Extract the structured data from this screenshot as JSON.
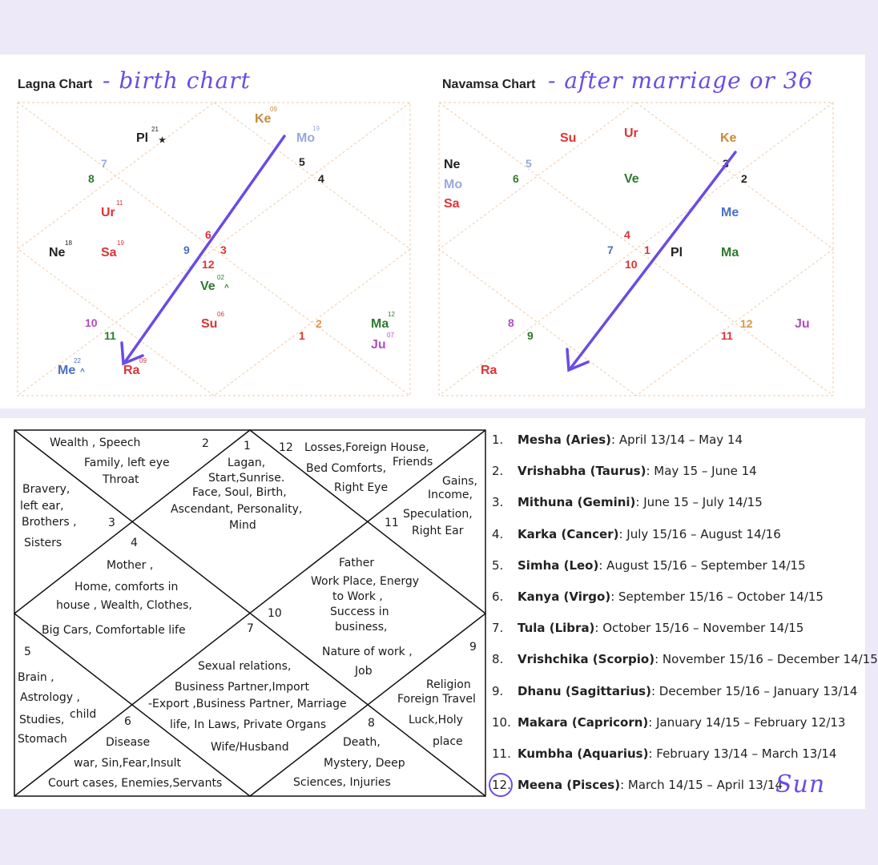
{
  "lagna": {
    "title": "Lagna Chart",
    "note": "- birth chart",
    "houses": [
      {
        "n": "6",
        "c": "#d33"
      },
      {
        "n": "3",
        "c": "#d33"
      },
      {
        "n": "9",
        "c": "#4a6fc4"
      },
      {
        "n": "12",
        "c": "#d33"
      },
      {
        "n": "5",
        "c": "#222"
      },
      {
        "n": "4",
        "c": "#222"
      },
      {
        "n": "7",
        "c": "#9aa8e0"
      },
      {
        "n": "8",
        "c": "#2e7a2e"
      },
      {
        "n": "10",
        "c": "#b04cc4"
      },
      {
        "n": "11",
        "c": "#2e7a2e"
      },
      {
        "n": "1",
        "c": "#d33"
      },
      {
        "n": "2",
        "c": "#e0944a"
      }
    ],
    "planets": [
      {
        "label": "Ke",
        "deg": "09",
        "color": "#c98a3b"
      },
      {
        "label": "Pl",
        "deg": "21",
        "color": "#222",
        "mark": "★"
      },
      {
        "label": "Mo",
        "deg": "19",
        "color": "#9aa8e0"
      },
      {
        "label": "Ur",
        "deg": "11",
        "color": "#d33"
      },
      {
        "label": "Ne",
        "deg": "18",
        "color": "#222"
      },
      {
        "label": "Sa",
        "deg": "19",
        "color": "#d33"
      },
      {
        "label": "Ve",
        "deg": "02",
        "color": "#2e7a2e",
        "mark": "^"
      },
      {
        "label": "Su",
        "deg": "06",
        "color": "#d33"
      },
      {
        "label": "Ma",
        "deg": "12",
        "color": "#2e7a2e"
      },
      {
        "label": "Ju",
        "deg": "07",
        "color": "#b04cc4"
      },
      {
        "label": "Me",
        "deg": "22",
        "color": "#4a6fc4",
        "mark": "^"
      },
      {
        "label": "Ra",
        "deg": "09",
        "color": "#d33"
      }
    ]
  },
  "navamsa": {
    "title": "Navamsa Chart",
    "note": "- after marriage or 36",
    "houses": [
      {
        "n": "4",
        "c": "#d33"
      },
      {
        "n": "7",
        "c": "#4a6fc4"
      },
      {
        "n": "1",
        "c": "#d33"
      },
      {
        "n": "10",
        "c": "#d33"
      },
      {
        "n": "5",
        "c": "#9aa8e0"
      },
      {
        "n": "6",
        "c": "#2e7a2e"
      },
      {
        "n": "3",
        "c": "#222"
      },
      {
        "n": "2",
        "c": "#222"
      },
      {
        "n": "8",
        "c": "#b04cc4"
      },
      {
        "n": "9",
        "c": "#2e7a2e"
      },
      {
        "n": "11",
        "c": "#d33"
      },
      {
        "n": "12",
        "c": "#e0944a"
      }
    ],
    "planets": [
      {
        "label": "Su",
        "color": "#d33"
      },
      {
        "label": "Ur",
        "color": "#d33"
      },
      {
        "label": "Ke",
        "color": "#c98a3b"
      },
      {
        "label": "Ne",
        "color": "#222"
      },
      {
        "label": "Mo",
        "color": "#9aa8e0"
      },
      {
        "label": "Sa",
        "color": "#d33"
      },
      {
        "label": "Ve",
        "color": "#2e7a2e"
      },
      {
        "label": "Me",
        "color": "#4a6fc4"
      },
      {
        "label": "Pl",
        "color": "#222"
      },
      {
        "label": "Ma",
        "color": "#2e7a2e"
      },
      {
        "label": "Ju",
        "color": "#b04cc4"
      },
      {
        "label": "Ra",
        "color": "#d33"
      }
    ]
  },
  "house_map": {
    "numbers": [
      "2",
      "1",
      "12",
      "3",
      "4",
      "11",
      "10",
      "5",
      "7",
      "9",
      "6",
      "8"
    ],
    "texts": [
      "Wealth , Speech",
      "Family, left eye",
      "Throat",
      "Lagan,",
      "Start,Sunrise.",
      "Face, Soul, Birth,",
      "Ascendant, Personality,",
      "Mind",
      "Losses,Foreign House,",
      "Friends",
      "Bed Comforts,",
      "Right Eye",
      "Gains,",
      "Income,",
      "Speculation,",
      "Right Ear",
      "Bravery,",
      "left ear,",
      "Brothers ,",
      "Sisters",
      "Mother ,",
      "Home, comforts in",
      "house , Wealth, Clothes,",
      "Big Cars, Comfortable life",
      "Father",
      "Work Place, Energy",
      "to Work ,",
      "Success in",
      "business,",
      "Nature of work ,",
      "Job",
      "Brain ,",
      "Astrology ,",
      "Studies,",
      "child",
      "Stomach",
      "Sexual relations,",
      "Business Partner,Import",
      "-Export ,Business Partner, Marriage",
      "life, In Laws, Private Organs",
      "Wife/Husband",
      "Religion",
      "Foreign Travel",
      "Luck,Holy",
      "place",
      "Disease",
      "war, Sin,Fear,Insult",
      "Court cases, Enemies,Servants",
      "Death,",
      "Mystery, Deep",
      "Sciences, Injuries"
    ]
  },
  "rashis": [
    {
      "num": "1.",
      "name": "Mesha (Aries)",
      "dates": ": April 13/14 – May 14"
    },
    {
      "num": "2.",
      "name": "Vrishabha (Taurus)",
      "dates": ": May 15 – June 14"
    },
    {
      "num": "3.",
      "name": "Mithuna (Gemini)",
      "dates": ": June 15 – July 14/15"
    },
    {
      "num": "4.",
      "name": "Karka (Cancer)",
      "dates": ": July 15/16 – August 14/16"
    },
    {
      "num": "5.",
      "name": "Simha (Leo)",
      "dates": ": August 15/16 – September 14/15"
    },
    {
      "num": "6.",
      "name": "Kanya (Virgo)",
      "dates": ": September 15/16 – October 14/15"
    },
    {
      "num": "7.",
      "name": "Tula (Libra)",
      "dates": ": October 15/16 – November 14/15"
    },
    {
      "num": "8.",
      "name": "Vrishchika (Scorpio)",
      "dates": ": November 15/16 – December 14/15"
    },
    {
      "num": "9.",
      "name": "Dhanu (Sagittarius)",
      "dates": ": December 15/16 – January 13/14"
    },
    {
      "num": "10.",
      "name": "Makara (Capricorn)",
      "dates": ": January 14/15 – February 12/13"
    },
    {
      "num": "11.",
      "name": "Kumbha (Aquarius)",
      "dates": ": February 13/14 – March 13/14"
    },
    {
      "num": "12.",
      "name": "Meena (Pisces)",
      "dates": ": March 14/15 – April 13/14"
    }
  ],
  "sun_note": "Sun",
  "accent": "#6a4ce6"
}
